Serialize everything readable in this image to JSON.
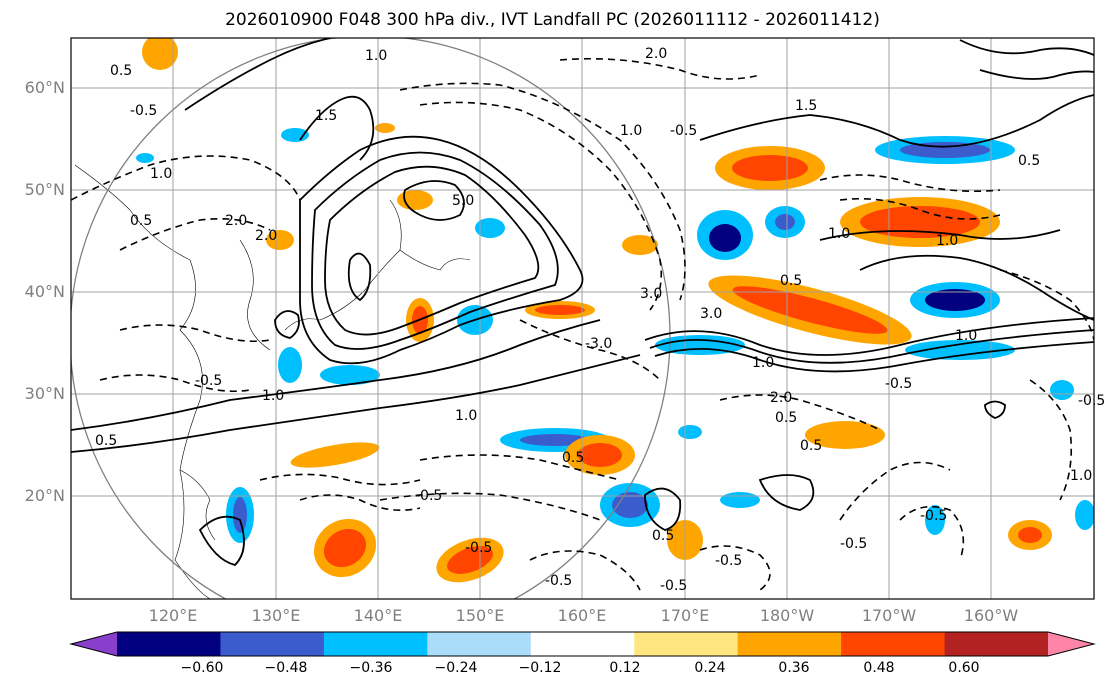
{
  "title": "2026010900 F048 300 hPa div., IVT Landfall PC (2026011112 - 2026011412)",
  "lat_labels": [
    "60°N",
    "50°N",
    "40°N",
    "30°N",
    "20°N"
  ],
  "lon_labels": [
    "120°E",
    "130°E",
    "140°E",
    "150°E",
    "160°E",
    "170°E",
    "180°W",
    "170°W",
    "160°W"
  ],
  "contour_labels": [
    "0.5",
    "0.5",
    "0.5",
    "1.0",
    "1.0",
    "1.5",
    "2.0",
    "-0.5",
    "-0.5",
    "1.0",
    "2.0",
    "1.0",
    "2.0",
    "5.0",
    "3.0",
    "1.0",
    "1.5",
    "1.0",
    "-0.5",
    "-3.0",
    "3.0",
    "1.0",
    "2.0",
    "0.5",
    "1.0",
    "0.5",
    "0.5",
    "-0.5",
    "1.0",
    "-0.5",
    "1.0",
    "-0.5",
    "-0.5",
    "0.5",
    "-0.5",
    "-0.5",
    "-0.5",
    "-0.5",
    "-0.5",
    "0.5",
    "0.5"
  ],
  "colorbar": {
    "ticks": [
      "−0.60",
      "−0.48",
      "−0.36",
      "−0.24",
      "−0.12",
      "0.12",
      "0.24",
      "0.36",
      "0.48",
      "0.60"
    ],
    "colors": [
      "#8a3fcc",
      "#000080",
      "#3a5ccc",
      "#00bfff",
      "#abdcfa",
      "#ffffff",
      "#ffe680",
      "#ffa500",
      "#ff4500",
      "#b22222",
      "#ff85a8"
    ]
  }
}
